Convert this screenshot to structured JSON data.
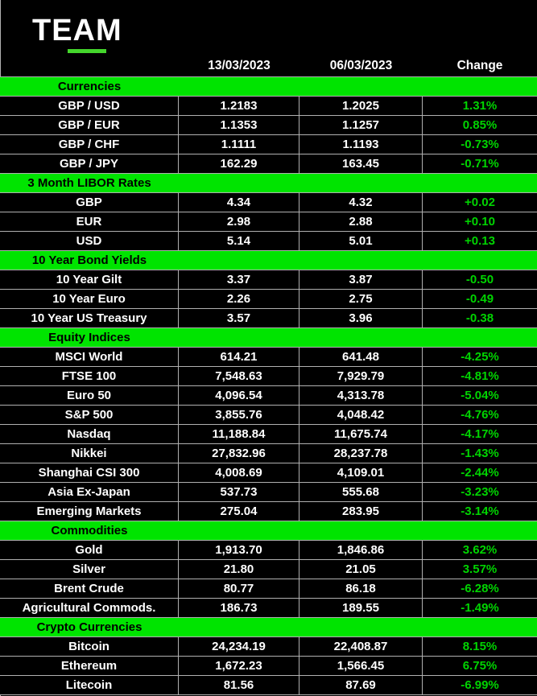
{
  "logo": {
    "text": "TEAM"
  },
  "colors": {
    "background": "#000000",
    "section_band_green": "#00e400",
    "change_text_green": "#00d400",
    "logo_underline_green": "#44d62c",
    "text_white": "#ffffff",
    "gridline_gray": "#b0b0b0"
  },
  "chart_data": {
    "type": "table",
    "columns": [
      "",
      "13/03/2023",
      "06/03/2023",
      "Change"
    ],
    "sections": [
      {
        "title": "Currencies",
        "rows": [
          [
            "GBP / USD",
            "1.2183",
            "1.2025",
            "1.31%"
          ],
          [
            "GBP / EUR",
            "1.1353",
            "1.1257",
            "0.85%"
          ],
          [
            "GBP / CHF",
            "1.1111",
            "1.1193",
            "-0.73%"
          ],
          [
            "GBP / JPY",
            "162.29",
            "163.45",
            "-0.71%"
          ]
        ]
      },
      {
        "title": "3 Month LIBOR Rates",
        "rows": [
          [
            "GBP",
            "4.34",
            "4.32",
            "+0.02"
          ],
          [
            "EUR",
            "2.98",
            "2.88",
            "+0.10"
          ],
          [
            "USD",
            "5.14",
            "5.01",
            "+0.13"
          ]
        ]
      },
      {
        "title": "10 Year Bond Yields",
        "rows": [
          [
            "10 Year Gilt",
            "3.37",
            "3.87",
            "-0.50"
          ],
          [
            "10 Year Euro",
            "2.26",
            "2.75",
            "-0.49"
          ],
          [
            "10 Year US Treasury",
            "3.57",
            "3.96",
            "-0.38"
          ]
        ]
      },
      {
        "title": "Equity Indices",
        "rows": [
          [
            "MSCI World",
            "614.21",
            "641.48",
            "-4.25%"
          ],
          [
            "FTSE 100",
            "7,548.63",
            "7,929.79",
            "-4.81%"
          ],
          [
            "Euro 50",
            "4,096.54",
            "4,313.78",
            "-5.04%"
          ],
          [
            "S&P 500",
            "3,855.76",
            "4,048.42",
            "-4.76%"
          ],
          [
            "Nasdaq",
            "11,188.84",
            "11,675.74",
            "-4.17%"
          ],
          [
            "Nikkei",
            "27,832.96",
            "28,237.78",
            "-1.43%"
          ],
          [
            "Shanghai CSI 300",
            "4,008.69",
            "4,109.01",
            "-2.44%"
          ],
          [
            "Asia Ex-Japan",
            "537.73",
            "555.68",
            "-3.23%"
          ],
          [
            "Emerging Markets",
            "275.04",
            "283.95",
            "-3.14%"
          ]
        ]
      },
      {
        "title": "Commodities",
        "rows": [
          [
            "Gold",
            "1,913.70",
            "1,846.86",
            "3.62%"
          ],
          [
            "Silver",
            "21.80",
            "21.05",
            "3.57%"
          ],
          [
            "Brent Crude",
            "80.77",
            "86.18",
            "-6.28%"
          ],
          [
            "Agricultural Commods.",
            "186.73",
            "189.55",
            "-1.49%"
          ]
        ]
      },
      {
        "title": "Crypto Currencies",
        "rows": [
          [
            "Bitcoin",
            "24,234.19",
            "22,408.87",
            "8.15%"
          ],
          [
            "Ethereum",
            "1,672.23",
            "1,566.45",
            "6.75%"
          ],
          [
            "Litecoin",
            "81.56",
            "87.69",
            "-6.99%"
          ]
        ]
      }
    ]
  }
}
